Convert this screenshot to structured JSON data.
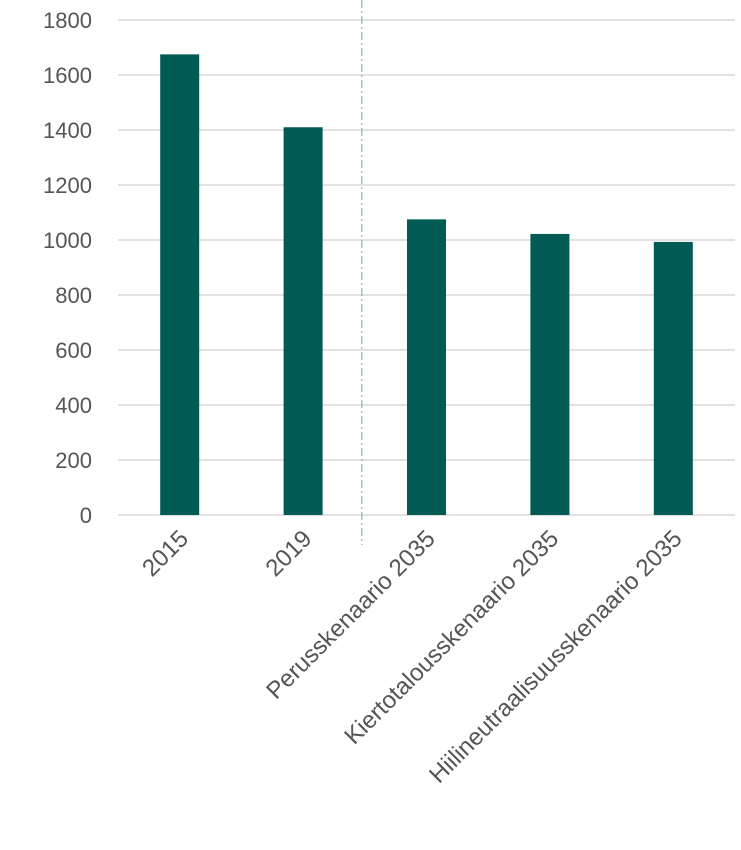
{
  "chart_data": {
    "type": "bar",
    "title": "",
    "xlabel": "",
    "ylabel": "",
    "categories": [
      "2015",
      "2019",
      "Perusskenaario 2035",
      "Kiertotalousskenaario 2035",
      "Hiilineutraalisuusskenaario 2035"
    ],
    "values": [
      1675,
      1410,
      1075,
      1022,
      993
    ],
    "ylim": [
      0,
      1800
    ],
    "yticks": [
      0,
      200,
      400,
      600,
      800,
      1000,
      1200,
      1400,
      1600,
      1800
    ],
    "grid": true,
    "legend": "none",
    "bar_color": "#015a54",
    "grid_color": "#d9d9d9",
    "divider": {
      "between_categories": [
        1,
        2
      ],
      "style": "dash-dot",
      "color": "#7fbf9f"
    }
  }
}
